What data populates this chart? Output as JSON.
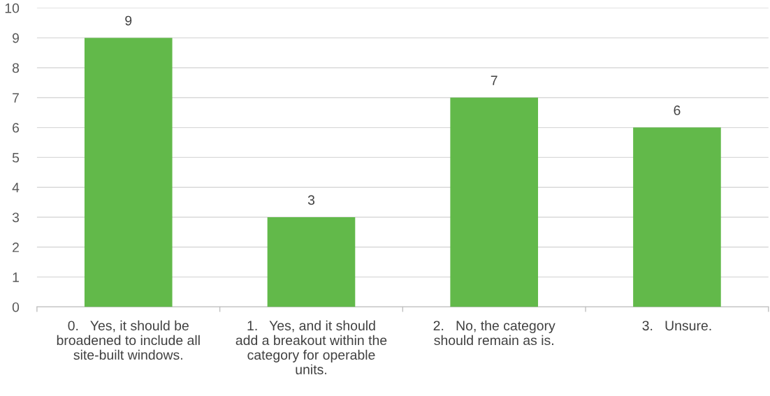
{
  "chart_data": {
    "type": "bar",
    "categories": [
      "0.   Yes, it should be broadened to include all site-built windows.",
      "1.   Yes, and it should add a breakout within the category for operable units.",
      "2.   No, the category should remain as is.",
      "3.   Unsure."
    ],
    "values": [
      9,
      3,
      7,
      6
    ],
    "color": "#62b94a",
    "ylim": [
      0,
      10
    ],
    "yticks": [
      0,
      1,
      2,
      3,
      4,
      5,
      6,
      7,
      8,
      9,
      10
    ],
    "grid": "y",
    "data_labels": true
  }
}
